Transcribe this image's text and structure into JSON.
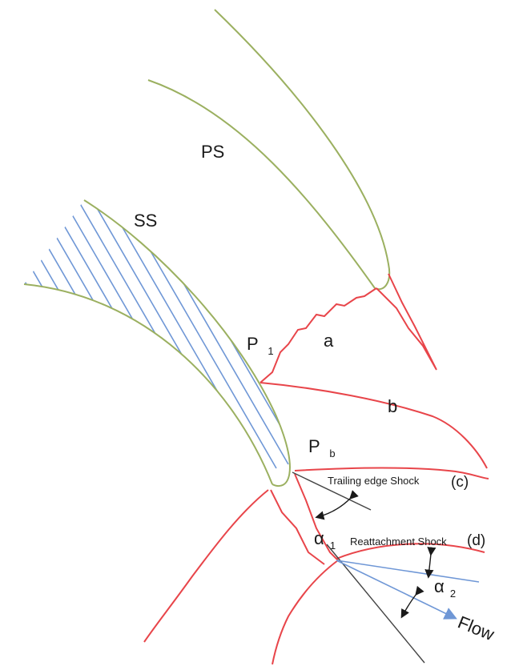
{
  "labels": {
    "ps": "PS",
    "ss": "SS",
    "p1_main": "P",
    "p1_sub": "1",
    "pb_main": "P",
    "pb_sub": "b",
    "a": "a",
    "b": "b",
    "trailing_edge_shock": "Trailing edge Shock",
    "c": "(c)",
    "reattachment_shock": "Reattachment Shock",
    "d": "(d)",
    "alpha1_main": "α",
    "alpha1_sub": "1",
    "alpha2_main": "α",
    "alpha2_sub": "2",
    "flow": "Flow"
  },
  "colors": {
    "blade_outline": "#9bb060",
    "hatch": "#6f97d6",
    "shock": "#e8454a",
    "reference_line": "#444444",
    "flow_arrow": "#6f97d6",
    "text": "#1a1a1a"
  }
}
